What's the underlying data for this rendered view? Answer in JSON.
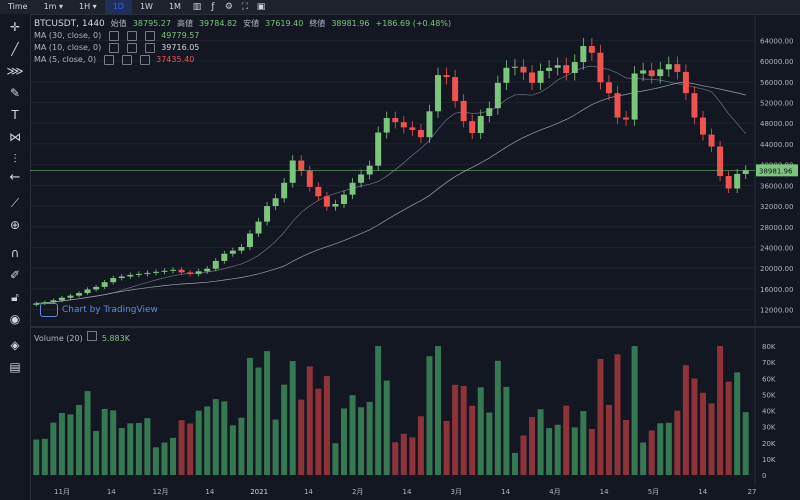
{
  "toolbar": {
    "items": [
      {
        "label": "Time"
      },
      {
        "label": "1m ▾"
      },
      {
        "label": "1H ▾"
      },
      {
        "label": "1D",
        "active": true
      },
      {
        "label": "1W"
      },
      {
        "label": "1M"
      }
    ]
  },
  "symbol": {
    "name": "BTCUSDT, 1440",
    "open_label": "始值",
    "open": "38795.27",
    "high_label": "高値",
    "high": "39784.82",
    "low_label": "安値",
    "low": "37619.40",
    "close_label": "終値",
    "close": "38981.96",
    "change": "+186.69 (+0.48%)"
  },
  "indicators": [
    {
      "label": "MA (30, close, 0)",
      "value": "49779.57"
    },
    {
      "label": "MA (10, close, 0)",
      "value": "39716.05"
    },
    {
      "label": "MA (5, close, 0)",
      "value": "37435.40"
    }
  ],
  "volume": {
    "label": "Volume (20)",
    "value": "5.883K"
  },
  "attribution": "Chart by TradingView",
  "price_axis": [
    "64000.00",
    "60000.00",
    "56000.00",
    "52000.00",
    "48000.00",
    "44000.00",
    "40000.00",
    "36000.00",
    "32000.00",
    "28000.00",
    "24000.00",
    "20000.00",
    "16000.00",
    "12000.00"
  ],
  "current_price_badge": "38981.96",
  "volume_axis": [
    "80K",
    "70K",
    "60K",
    "50K",
    "40K",
    "30K",
    "20K",
    "10K",
    "0"
  ],
  "time_axis": [
    "11月",
    "14",
    "12月",
    "14",
    "2021",
    "14",
    "2月",
    "14",
    "3月",
    "14",
    "4月",
    "14",
    "5月",
    "14",
    "27"
  ],
  "colors": {
    "up": "#26a69a",
    "down": "#ef5350",
    "bg": "#131722"
  },
  "chart_data": {
    "type": "candlestick",
    "y_range": [
      10000,
      66000
    ],
    "volume_range": [
      0,
      85
    ],
    "close_series": [
      13200,
      13400,
      13800,
      14300,
      14700,
      15200,
      15900,
      16400,
      17300,
      18100,
      18400,
      18700,
      18900,
      19100,
      19300,
      19500,
      19700,
      19200,
      18900,
      19400,
      19900,
      21400,
      22800,
      23400,
      24100,
      26700,
      29000,
      32000,
      33500,
      36500,
      40800,
      38800,
      35700,
      33900,
      31900,
      32400,
      34200,
      36500,
      38100,
      39800,
      46200,
      49000,
      48200,
      47200,
      46700,
      45300,
      50300,
      57300,
      56900,
      52300,
      48400,
      46100,
      49400,
      50900,
      55800,
      58700,
      58900,
      57800,
      55800,
      58100,
      58700,
      59200,
      57700,
      59800,
      62900,
      61600,
      55900,
      53800,
      49100,
      48700,
      57600,
      58200,
      57100,
      58400,
      59400,
      57900,
      53800,
      49100,
      45800,
      43500,
      37800,
      35400,
      38200,
      38900
    ]
  }
}
